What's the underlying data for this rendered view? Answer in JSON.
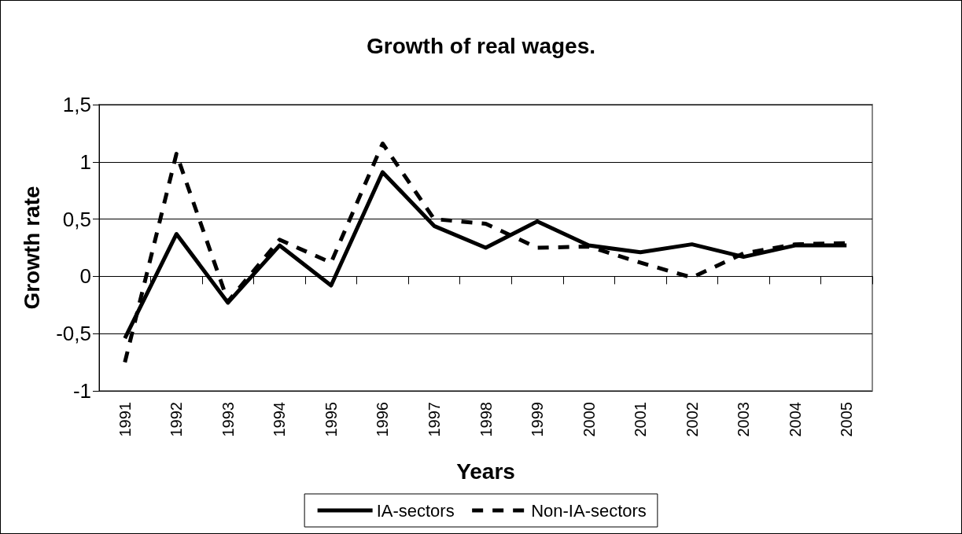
{
  "chart_data": {
    "type": "line",
    "title": "Growth of real wages.",
    "xlabel": "Years",
    "ylabel": "Growth rate",
    "categories": [
      "1991",
      "1992",
      "1993",
      "1994",
      "1995",
      "1996",
      "1997",
      "1998",
      "1999",
      "2000",
      "2001",
      "2002",
      "2003",
      "2004",
      "2005"
    ],
    "series": [
      {
        "name": "IA-sectors",
        "color": "#000000",
        "line_style": "solid",
        "values": [
          -0.54,
          0.37,
          -0.23,
          0.27,
          -0.08,
          0.91,
          0.44,
          0.25,
          0.48,
          0.27,
          0.21,
          0.28,
          0.17,
          0.27,
          0.27
        ]
      },
      {
        "name": "Non-IA-sectors",
        "color": "#000000",
        "line_style": "dashed",
        "values": [
          -0.75,
          1.07,
          -0.22,
          0.32,
          0.12,
          1.16,
          0.5,
          0.46,
          0.25,
          0.26,
          0.12,
          -0.01,
          0.2,
          0.28,
          0.29
        ]
      }
    ],
    "ylim": [
      -1,
      1.5
    ],
    "yticks": [
      {
        "value": -1,
        "label": "-1"
      },
      {
        "value": -0.5,
        "label": "-0,5"
      },
      {
        "value": 0,
        "label": "0"
      },
      {
        "value": 0.5,
        "label": "0,5"
      },
      {
        "value": 1,
        "label": "1"
      },
      {
        "value": 1.5,
        "label": "1,5"
      }
    ],
    "grid": "y",
    "legend": "bottom",
    "marker": "none"
  }
}
